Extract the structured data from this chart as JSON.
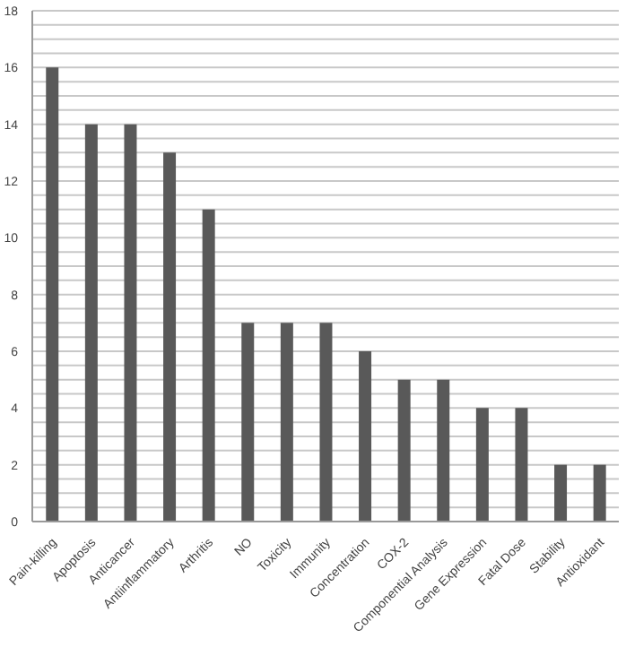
{
  "chart_data": {
    "type": "bar",
    "categories": [
      "Pain-killing",
      "Apoptosis",
      "Anticancer",
      "Antiinflammatory",
      "Arthritis",
      "NO",
      "Toxicity",
      "Immunity",
      "Concentration",
      "COX-2",
      "Componential Analysis",
      "Gene Expression",
      "Fatal Dose",
      "Stability",
      "Antioxidant"
    ],
    "values": [
      16,
      14,
      14,
      13,
      11,
      7,
      7,
      7,
      6,
      5,
      5,
      4,
      4,
      2,
      2
    ],
    "color": "#595959",
    "ylim": [
      0,
      18
    ],
    "yticks": [
      0,
      {
        "value": 0.5,
        "label": null
      },
      {
        "value": 1,
        "label": null
      },
      {
        "value": 1.5,
        "label": null
      },
      2,
      {
        "value": 2.5,
        "label": null
      },
      {
        "value": 3,
        "label": null
      },
      {
        "value": 3.5,
        "label": null
      },
      4,
      {
        "value": 4.5,
        "label": null
      },
      {
        "value": 5,
        "label": null
      },
      {
        "value": 5.5,
        "label": null
      },
      6,
      {
        "value": 6.5,
        "label": null
      },
      {
        "value": 7,
        "label": null
      },
      {
        "value": 7.5,
        "label": null
      },
      8,
      {
        "value": 8.5,
        "label": null
      },
      {
        "value": 9,
        "label": null
      },
      {
        "value": 9.5,
        "label": null
      },
      10,
      {
        "value": 10.5,
        "label": null
      },
      {
        "value": 11,
        "label": null
      },
      {
        "value": 11.5,
        "label": null
      },
      12,
      {
        "value": 12.5,
        "label": null
      },
      {
        "value": 13,
        "label": null
      },
      {
        "value": 13.5,
        "label": null
      },
      14,
      {
        "value": 14.5,
        "label": null
      },
      {
        "value": 15,
        "label": null
      },
      {
        "value": 15.5,
        "label": null
      },
      16,
      {
        "value": 16.5,
        "label": null
      },
      {
        "value": 17,
        "label": null
      },
      {
        "value": 17.5,
        "label": null
      },
      18
    ],
    "grid": "y"
  }
}
